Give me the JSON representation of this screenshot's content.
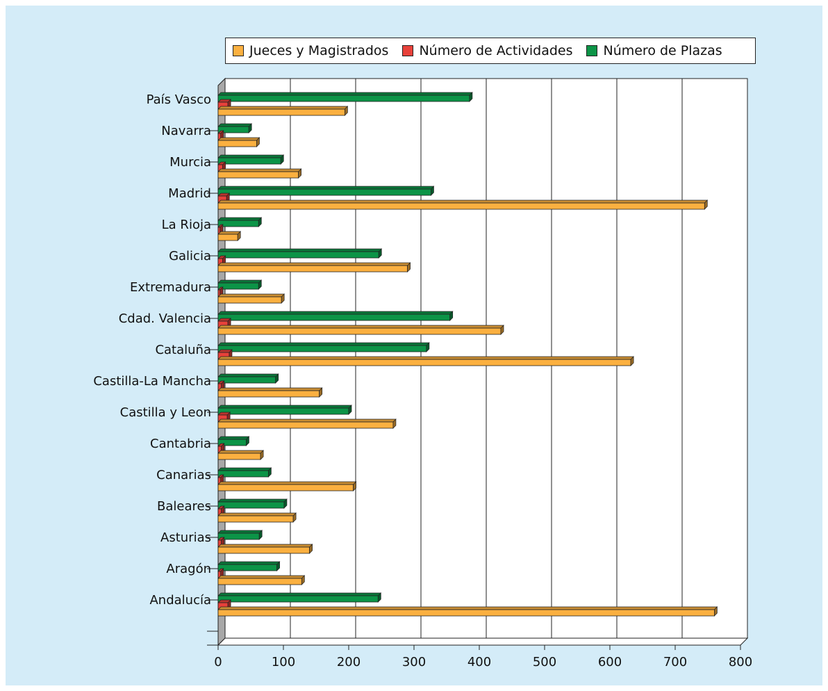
{
  "chart_data": {
    "type": "bar",
    "orientation": "horizontal",
    "categories": [
      "Andalucía",
      "Aragón",
      "Asturias",
      "Baleares",
      "Canarias",
      "Cantabria",
      "Castilla y Leon",
      "Castilla-La Mancha",
      "Cataluña",
      "Cdad. Valencia",
      "Extremadura",
      "Galicia",
      "La Rioja",
      "Madrid",
      "Murcia",
      "Navarra",
      "País Vasco"
    ],
    "series": [
      {
        "name": "Jueces y Magistrados",
        "color": "#fbb040",
        "values": [
          760,
          128,
          140,
          115,
          207,
          65,
          268,
          155,
          632,
          433,
          97,
          290,
          30,
          745,
          123,
          59,
          194
        ]
      },
      {
        "name": "Número de Actividades",
        "color": "#e8413a",
        "values": [
          15,
          4,
          5,
          5,
          4,
          5,
          14,
          5,
          17,
          15,
          3,
          7,
          3,
          13,
          7,
          4,
          15
        ]
      },
      {
        "name": "Número de Plazas",
        "color": "#0c9447",
        "values": [
          245,
          90,
          63,
          101,
          77,
          43,
          200,
          88,
          319,
          355,
          62,
          246,
          62,
          326,
          96,
          47,
          385
        ]
      }
    ],
    "xlim": [
      0,
      800
    ],
    "xticks": [
      "0",
      "100",
      "200",
      "300",
      "400",
      "500",
      "600",
      "700",
      "800"
    ],
    "grid": true,
    "legend_position": "top"
  }
}
